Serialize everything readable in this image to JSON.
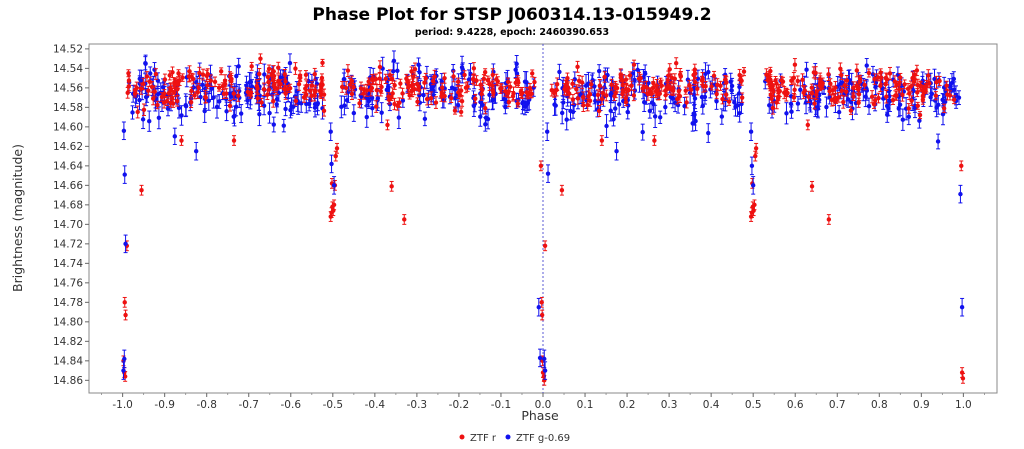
{
  "chart_data": {
    "type": "scatter",
    "title": "Phase Plot for STSP J060314.13-015949.2",
    "subtitle": "period: 9.4228, epoch: 2460390.653",
    "xlabel": "Phase",
    "ylabel": "Brightness (magnitude)",
    "xlim": [
      -1.08,
      1.08
    ],
    "ylim": [
      14.873,
      14.515
    ],
    "y_inverted": true,
    "x_ticks": [
      "-1.0",
      "-0.9",
      "-0.8",
      "-0.7",
      "-0.6",
      "-0.5",
      "-0.4",
      "-0.3",
      "-0.2",
      "-0.1",
      "0.0",
      "0.1",
      "0.2",
      "0.3",
      "0.4",
      "0.5",
      "0.6",
      "0.7",
      "0.8",
      "0.9",
      "1.0"
    ],
    "y_ticks": [
      "14.52",
      "14.54",
      "14.56",
      "14.58",
      "14.60",
      "14.62",
      "14.64",
      "14.66",
      "14.68",
      "14.70",
      "14.72",
      "14.74",
      "14.76",
      "14.78",
      "14.80",
      "14.82",
      "14.84",
      "14.86"
    ],
    "marker_line_x": 0.0,
    "legend_position": "bottom-center",
    "grid": false,
    "series": [
      {
        "name": "ZTF r",
        "color": "#ee1111",
        "points": [
          [
            -0.995,
            14.78
          ],
          [
            -0.993,
            14.793
          ],
          [
            -0.998,
            14.84
          ],
          [
            -0.996,
            14.852
          ],
          [
            -0.994,
            14.856
          ],
          [
            -0.99,
            14.722
          ],
          [
            -0.955,
            14.665
          ],
          [
            -0.86,
            14.614
          ],
          [
            -0.735,
            14.614
          ],
          [
            -0.505,
            14.692
          ],
          [
            -0.503,
            14.688
          ],
          [
            -0.501,
            14.682
          ],
          [
            -0.499,
            14.686
          ],
          [
            -0.497,
            14.68
          ],
          [
            -0.502,
            14.658
          ],
          [
            -0.495,
            14.66
          ],
          [
            -0.493,
            14.63
          ],
          [
            -0.49,
            14.622
          ],
          [
            -0.36,
            14.661
          ],
          [
            -0.33,
            14.695
          ],
          [
            -0.37,
            14.598
          ],
          [
            -0.005,
            14.64
          ],
          [
            -0.003,
            14.78
          ],
          [
            -0.002,
            14.793
          ],
          [
            -0.001,
            14.84
          ],
          [
            0.0,
            14.852
          ],
          [
            0.002,
            14.856
          ],
          [
            0.003,
            14.86
          ],
          [
            0.005,
            14.722
          ],
          [
            0.045,
            14.665
          ],
          [
            0.14,
            14.614
          ],
          [
            0.265,
            14.614
          ],
          [
            0.495,
            14.692
          ],
          [
            0.497,
            14.688
          ],
          [
            0.499,
            14.682
          ],
          [
            0.501,
            14.686
          ],
          [
            0.503,
            14.68
          ],
          [
            0.498,
            14.658
          ],
          [
            0.505,
            14.63
          ],
          [
            0.507,
            14.622
          ],
          [
            0.64,
            14.661
          ],
          [
            0.68,
            14.695
          ],
          [
            0.63,
            14.598
          ],
          [
            0.995,
            14.64
          ],
          [
            0.997,
            14.852
          ],
          [
            0.999,
            14.858
          ]
        ]
      },
      {
        "name": "ZTF g-0.69",
        "color": "#1111ee",
        "points": [
          [
            -0.997,
            14.604
          ],
          [
            -0.995,
            14.649
          ],
          [
            -0.993,
            14.72
          ],
          [
            -0.996,
            14.838
          ],
          [
            -0.998,
            14.85
          ],
          [
            -0.825,
            14.625
          ],
          [
            -0.505,
            14.605
          ],
          [
            -0.503,
            14.638
          ],
          [
            -0.497,
            14.66
          ],
          [
            -0.01,
            14.785
          ],
          [
            -0.007,
            14.837
          ],
          [
            0.003,
            14.838
          ],
          [
            0.005,
            14.85
          ],
          [
            0.01,
            14.605
          ],
          [
            0.012,
            14.648
          ],
          [
            0.175,
            14.625
          ],
          [
            0.495,
            14.605
          ],
          [
            0.497,
            14.64
          ],
          [
            0.5,
            14.66
          ],
          [
            0.993,
            14.669
          ],
          [
            0.997,
            14.785
          ]
        ]
      }
    ]
  }
}
